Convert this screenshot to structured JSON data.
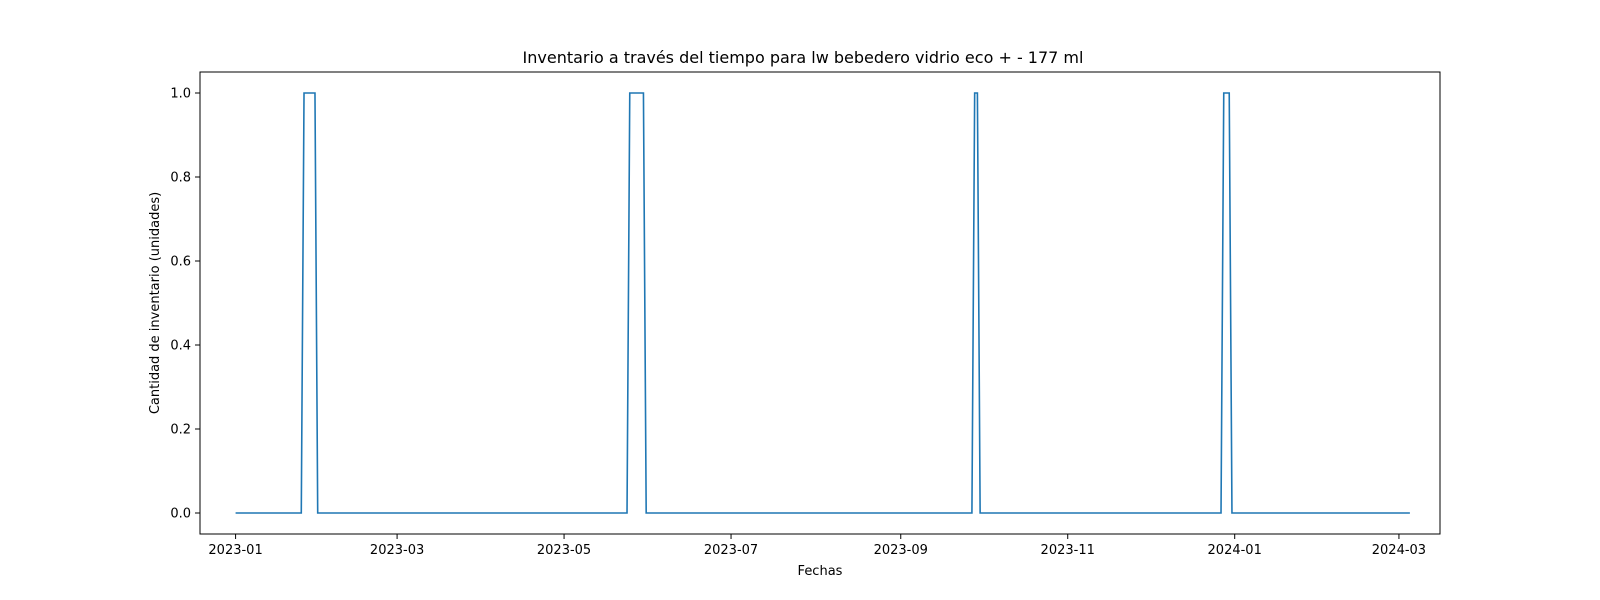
{
  "chart_data": {
    "type": "line",
    "title": "Inventario a través del tiempo para lw bebedero vidrio  eco +  - 177 ml",
    "xlabel": "Fechas",
    "ylabel": "Cantidad de inventario (unidades)",
    "xlim": [
      "2022-12-19",
      "2024-03-16"
    ],
    "ylim": [
      -0.05,
      1.05
    ],
    "x_ticks": [
      "2023-01",
      "2023-03",
      "2023-05",
      "2023-07",
      "2023-09",
      "2023-11",
      "2024-01",
      "2024-03"
    ],
    "y_ticks": [
      "0.0",
      "0.2",
      "0.4",
      "0.6",
      "0.8",
      "1.0"
    ],
    "grid": false,
    "color": "#1f77b4",
    "series": [
      {
        "points": [
          [
            "2023-01-01",
            0
          ],
          [
            "2023-01-25",
            0
          ],
          [
            "2023-01-26",
            1
          ],
          [
            "2023-01-30",
            1
          ],
          [
            "2023-01-31",
            0
          ],
          [
            "2023-05-24",
            0
          ],
          [
            "2023-05-25",
            1
          ],
          [
            "2023-05-30",
            1
          ],
          [
            "2023-05-31",
            0
          ],
          [
            "2023-09-27",
            0
          ],
          [
            "2023-09-28",
            1
          ],
          [
            "2023-09-29",
            1
          ],
          [
            "2023-09-30",
            0
          ],
          [
            "2023-12-27",
            0
          ],
          [
            "2023-12-28",
            1
          ],
          [
            "2023-12-30",
            1
          ],
          [
            "2023-12-31",
            0
          ],
          [
            "2024-03-05",
            0
          ]
        ]
      }
    ]
  }
}
